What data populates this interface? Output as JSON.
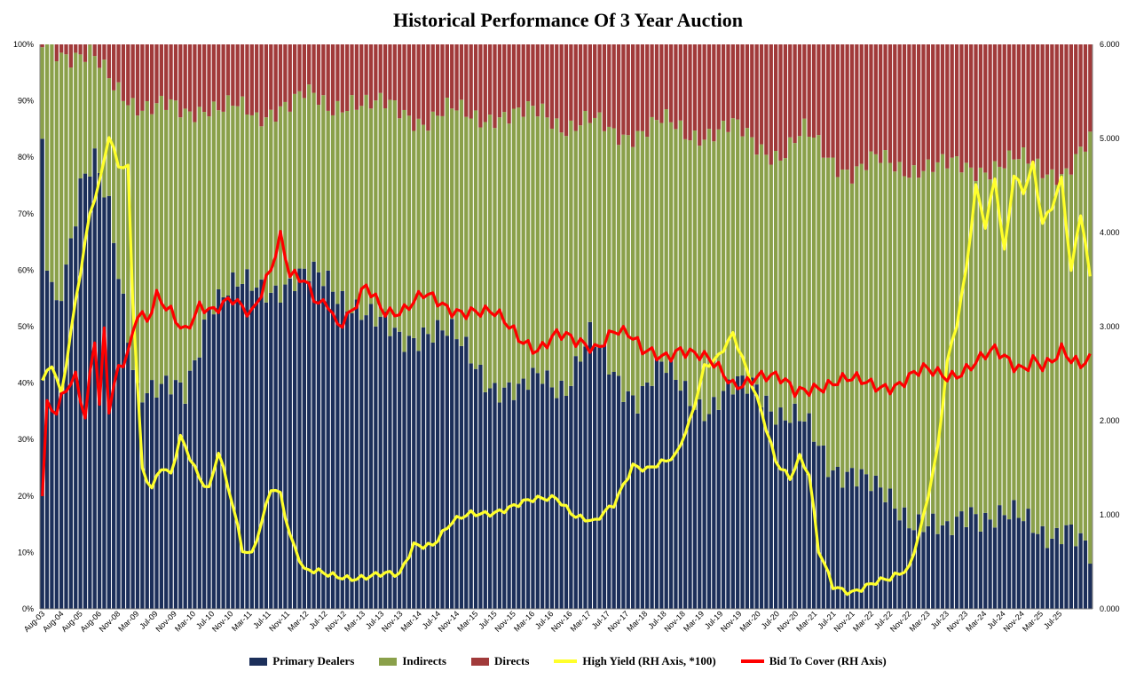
{
  "chart_data": {
    "type": "bar",
    "subtype": "stacked-bar-with-lines-dual-axis",
    "title": "Historical Performance Of 3 Year Auction",
    "left_axis": {
      "ticks": [
        "0%",
        "10%",
        "20%",
        "30%",
        "40%",
        "50%",
        "60%",
        "70%",
        "80%",
        "90%",
        "100%"
      ],
      "ylim": [
        0,
        100
      ]
    },
    "right_axis": {
      "ticks": [
        "0.000",
        "1.000",
        "2.000",
        "3.000",
        "4.000",
        "5.000",
        "6.000"
      ],
      "ylim": [
        0,
        6
      ]
    },
    "x_tick_labels": [
      "Aug-03",
      "Aug-04",
      "Aug-05",
      "Aug-06",
      "Nov-08",
      "Mar-09",
      "Jul-09",
      "Nov-09",
      "Mar-10",
      "Jul-10",
      "Nov-10",
      "Mar-11",
      "Jul-11",
      "Nov-11",
      "Mar-12",
      "Jul-12",
      "Nov-12",
      "Mar-13",
      "Jul-13",
      "Nov-13",
      "Mar-14",
      "Jul-14",
      "Nov-14",
      "Mar-15",
      "Jul-15",
      "Nov-15",
      "Mar-16",
      "Jul-16",
      "Nov-16",
      "Mar-17",
      "Jul-17",
      "Nov-17",
      "Mar-18",
      "Jul-18",
      "Nov-18",
      "Mar-19",
      "Jul-19",
      "Nov-19",
      "Mar-20",
      "Jul-20",
      "Nov-20",
      "Mar-21",
      "Jul-21",
      "Nov-21",
      "Mar-22",
      "Jul-22",
      "Nov-22",
      "Mar-23",
      "Jul-23",
      "Nov-23",
      "Mar-24",
      "Jul-24",
      "Nov-24",
      "Mar-25",
      "Jul-25"
    ],
    "legend_position": "bottom",
    "legend": [
      {
        "name": "Primary Dealers",
        "color": "#1c2f5a",
        "kind": "bar"
      },
      {
        "name": "Indirects",
        "color": "#8aa04a",
        "kind": "bar"
      },
      {
        "name": "Directs",
        "color": "#a13a3a",
        "kind": "bar"
      },
      {
        "name": "High Yield (RH Axis, *100)",
        "color": "#ffff2b",
        "kind": "line"
      },
      {
        "name": "Bid To Cover (RH Axis)",
        "color": "#ff0000",
        "kind": "line"
      }
    ],
    "keypoints": {
      "primary_dealers_pct": [
        [
          0,
          81
        ],
        [
          1,
          62
        ],
        [
          3,
          55
        ],
        [
          5,
          62
        ],
        [
          8,
          75
        ],
        [
          11,
          78
        ],
        [
          14,
          70
        ],
        [
          17,
          55
        ],
        [
          20,
          40
        ],
        [
          25,
          38
        ],
        [
          30,
          38
        ],
        [
          35,
          55
        ],
        [
          40,
          56
        ],
        [
          45,
          57
        ],
        [
          50,
          58
        ],
        [
          55,
          58
        ],
        [
          60,
          58
        ],
        [
          65,
          55
        ],
        [
          70,
          50
        ],
        [
          75,
          48
        ],
        [
          80,
          50
        ],
        [
          85,
          48
        ],
        [
          90,
          45
        ],
        [
          95,
          40
        ],
        [
          100,
          37
        ],
        [
          105,
          42
        ],
        [
          110,
          40
        ],
        [
          115,
          47
        ],
        [
          120,
          42
        ],
        [
          125,
          38
        ],
        [
          130,
          42
        ],
        [
          135,
          39
        ],
        [
          140,
          36
        ],
        [
          145,
          38
        ],
        [
          150,
          40
        ],
        [
          155,
          35
        ],
        [
          160,
          32
        ],
        [
          165,
          26
        ],
        [
          170,
          25
        ],
        [
          175,
          20
        ],
        [
          180,
          18
        ],
        [
          185,
          16
        ],
        [
          190,
          12
        ],
        [
          195,
          18
        ],
        [
          200,
          17
        ],
        [
          205,
          15
        ],
        [
          210,
          14
        ],
        [
          215,
          15
        ],
        [
          220,
          8
        ]
      ],
      "directs_pct": [
        [
          0,
          0
        ],
        [
          5,
          1
        ],
        [
          10,
          2
        ],
        [
          15,
          8
        ],
        [
          20,
          10
        ],
        [
          25,
          11
        ],
        [
          30,
          13
        ],
        [
          35,
          10
        ],
        [
          40,
          11
        ],
        [
          45,
          14
        ],
        [
          50,
          10
        ],
        [
          55,
          9
        ],
        [
          60,
          12
        ],
        [
          65,
          9
        ],
        [
          70,
          11
        ],
        [
          75,
          12
        ],
        [
          80,
          13
        ],
        [
          85,
          12
        ],
        [
          90,
          13
        ],
        [
          95,
          12
        ],
        [
          100,
          13
        ],
        [
          105,
          12
        ],
        [
          110,
          14
        ],
        [
          115,
          14
        ],
        [
          120,
          16
        ],
        [
          125,
          15
        ],
        [
          130,
          14
        ],
        [
          135,
          16
        ],
        [
          140,
          15
        ],
        [
          145,
          15
        ],
        [
          150,
          18
        ],
        [
          155,
          19
        ],
        [
          160,
          16
        ],
        [
          165,
          20
        ],
        [
          170,
          22
        ],
        [
          175,
          21
        ],
        [
          180,
          22
        ],
        [
          185,
          21
        ],
        [
          190,
          22
        ],
        [
          195,
          22
        ],
        [
          200,
          21
        ],
        [
          205,
          21
        ],
        [
          210,
          22
        ],
        [
          215,
          22
        ],
        [
          220,
          18
        ]
      ],
      "high_yield_x100": [
        [
          0,
          2.4
        ],
        [
          2,
          2.6
        ],
        [
          4,
          2.3
        ],
        [
          7,
          3.3
        ],
        [
          10,
          4.2
        ],
        [
          12,
          4.5
        ],
        [
          14,
          5.0
        ],
        [
          16,
          4.7
        ],
        [
          18,
          4.7
        ],
        [
          19,
          3.3
        ],
        [
          21,
          1.5
        ],
        [
          23,
          1.3
        ],
        [
          25,
          1.5
        ],
        [
          27,
          1.4
        ],
        [
          29,
          1.8
        ],
        [
          31,
          1.6
        ],
        [
          33,
          1.4
        ],
        [
          35,
          1.3
        ],
        [
          37,
          1.7
        ],
        [
          40,
          1.1
        ],
        [
          42,
          0.6
        ],
        [
          44,
          0.55
        ],
        [
          46,
          0.9
        ],
        [
          48,
          1.3
        ],
        [
          50,
          1.25
        ],
        [
          52,
          0.8
        ],
        [
          55,
          0.4
        ],
        [
          60,
          0.35
        ],
        [
          65,
          0.35
        ],
        [
          70,
          0.35
        ],
        [
          75,
          0.35
        ],
        [
          78,
          0.7
        ],
        [
          82,
          0.7
        ],
        [
          86,
          0.9
        ],
        [
          90,
          1.0
        ],
        [
          95,
          1.05
        ],
        [
          100,
          1.1
        ],
        [
          104,
          1.15
        ],
        [
          108,
          1.2
        ],
        [
          112,
          1.0
        ],
        [
          116,
          0.9
        ],
        [
          120,
          1.1
        ],
        [
          124,
          1.55
        ],
        [
          127,
          1.5
        ],
        [
          131,
          1.55
        ],
        [
          133,
          1.6
        ],
        [
          136,
          2.0
        ],
        [
          139,
          2.6
        ],
        [
          142,
          2.7
        ],
        [
          145,
          2.9
        ],
        [
          148,
          2.5
        ],
        [
          151,
          2.1
        ],
        [
          154,
          1.6
        ],
        [
          157,
          1.4
        ],
        [
          159,
          1.6
        ],
        [
          161,
          1.4
        ],
        [
          163,
          0.6
        ],
        [
          166,
          0.25
        ],
        [
          170,
          0.2
        ],
        [
          174,
          0.25
        ],
        [
          178,
          0.3
        ],
        [
          182,
          0.45
        ],
        [
          185,
          1.0
        ],
        [
          188,
          1.7
        ],
        [
          190,
          2.6
        ],
        [
          192,
          3.0
        ],
        [
          194,
          3.6
        ],
        [
          196,
          4.5
        ],
        [
          198,
          4.1
        ],
        [
          200,
          4.6
        ],
        [
          202,
          3.8
        ],
        [
          204,
          4.6
        ],
        [
          206,
          4.4
        ],
        [
          208,
          4.7
        ],
        [
          210,
          4.1
        ],
        [
          212,
          4.3
        ],
        [
          214,
          4.6
        ],
        [
          216,
          3.6
        ],
        [
          218,
          4.2
        ],
        [
          220,
          3.5
        ]
      ],
      "bid_to_cover": [
        [
          0,
          1.3
        ],
        [
          1,
          2.2
        ],
        [
          3,
          2.1
        ],
        [
          5,
          2.3
        ],
        [
          7,
          2.4
        ],
        [
          9,
          2.0
        ],
        [
          11,
          2.9
        ],
        [
          12,
          2.2
        ],
        [
          13,
          3.0
        ],
        [
          14,
          2.2
        ],
        [
          16,
          2.6
        ],
        [
          18,
          2.7
        ],
        [
          20,
          3.1
        ],
        [
          22,
          3.0
        ],
        [
          24,
          3.3
        ],
        [
          27,
          3.2
        ],
        [
          30,
          3.0
        ],
        [
          33,
          3.2
        ],
        [
          36,
          3.1
        ],
        [
          40,
          3.3
        ],
        [
          44,
          3.2
        ],
        [
          48,
          3.6
        ],
        [
          50,
          3.9
        ],
        [
          52,
          3.5
        ],
        [
          55,
          3.5
        ],
        [
          58,
          3.3
        ],
        [
          60,
          3.3
        ],
        [
          62,
          3.0
        ],
        [
          65,
          3.1
        ],
        [
          68,
          3.4
        ],
        [
          72,
          3.2
        ],
        [
          76,
          3.2
        ],
        [
          80,
          3.3
        ],
        [
          85,
          3.2
        ],
        [
          90,
          3.2
        ],
        [
          95,
          3.1
        ],
        [
          100,
          2.9
        ],
        [
          104,
          2.8
        ],
        [
          108,
          2.9
        ],
        [
          112,
          2.8
        ],
        [
          116,
          2.8
        ],
        [
          120,
          3.0
        ],
        [
          123,
          2.9
        ],
        [
          126,
          2.7
        ],
        [
          130,
          2.7
        ],
        [
          134,
          2.8
        ],
        [
          137,
          2.7
        ],
        [
          140,
          2.6
        ],
        [
          145,
          2.4
        ],
        [
          150,
          2.5
        ],
        [
          155,
          2.4
        ],
        [
          158,
          2.3
        ],
        [
          162,
          2.4
        ],
        [
          166,
          2.4
        ],
        [
          170,
          2.4
        ],
        [
          175,
          2.4
        ],
        [
          180,
          2.4
        ],
        [
          185,
          2.5
        ],
        [
          190,
          2.5
        ],
        [
          195,
          2.6
        ],
        [
          200,
          2.7
        ],
        [
          204,
          2.6
        ],
        [
          206,
          2.6
        ],
        [
          208,
          2.7
        ],
        [
          210,
          2.6
        ],
        [
          212,
          2.6
        ],
        [
          214,
          2.7
        ],
        [
          216,
          2.6
        ],
        [
          218,
          2.6
        ],
        [
          220,
          2.7
        ]
      ]
    }
  }
}
